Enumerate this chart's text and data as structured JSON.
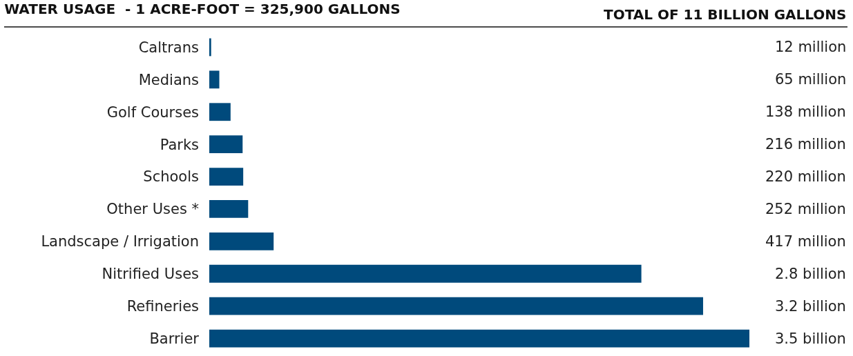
{
  "chart_data": {
    "type": "bar",
    "orientation": "horizontal",
    "title": "WATER USAGE  - 1 ACRE-FOOT = 325,900 GALLONS",
    "annotations": [
      "TOTAL OF 11 BILLION GALLONS"
    ],
    "categories": [
      "Caltrans",
      "Medians",
      "Golf Courses",
      "Parks",
      "Schools",
      "Other Uses *",
      "Landscape / Irrigation",
      "Nitrified Uses",
      "Refineries",
      "Barrier"
    ],
    "values": [
      12000000,
      65000000,
      138000000,
      216000000,
      220000000,
      252000000,
      417000000,
      2800000000,
      3200000000,
      3500000000
    ],
    "tick_labels": "y",
    "value_labels": [
      "12 million",
      "65 million",
      "138 million",
      "216 million",
      "220 million",
      "252 million",
      "417 million",
      "2.8 billion",
      "3.2 billion",
      "3.5 billion"
    ],
    "color": "#004a7c"
  }
}
